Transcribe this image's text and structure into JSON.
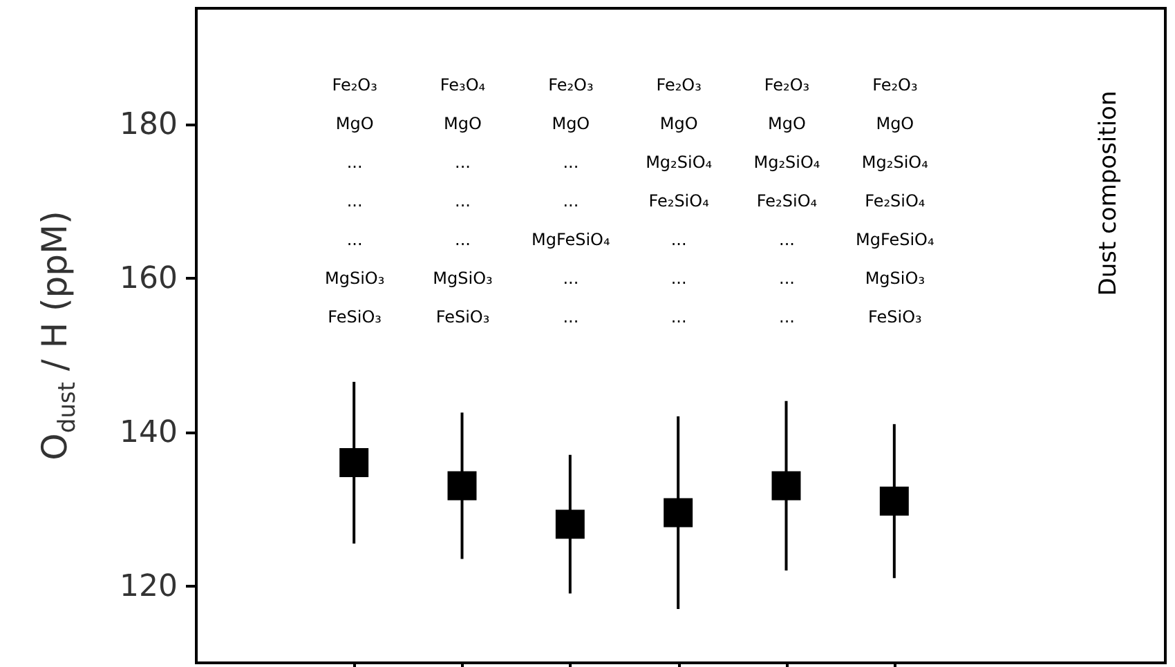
{
  "chart_data": {
    "type": "scatter",
    "ylabel": "O$_{dust}$ / H (ppM)",
    "categories": [
      "Fe₂O₃\nMgO\n...\n...\n...\nMgSiO₃\nFeSiO₃",
      "Fe₃O₄\nMgO\n...\n...\n...\nMgSiO₃\nFeSiO₃",
      "Fe₂O₃\nMgO\n...\n...\nMgFeSiO₄\n...\n...",
      "Fe₂O₃\nMgO\nMg₂SiO₄\nFe₂SiO₄\n...\n...\n...",
      "Fe₂O₃\nMgO\nMg₂SiO₄\nFe₂SiO₄\n...\n...\n...",
      "Fe₂O₃\nMgO\nMg₂SiO₄\nFe₂SiO₄\nMgFeSiO₄\nMgSiO₃\nFeSiO₃"
    ],
    "series": [
      {
        "color": "#000000",
        "values": [
          136,
          133,
          128,
          129.5,
          133,
          131
        ],
        "errors": [
          10.5,
          9.5,
          9,
          12.5,
          11,
          10
        ]
      }
    ],
    "marker": "square",
    "ylim": [
      110,
      195
    ],
    "yticks": [
      120,
      140,
      160,
      180
    ],
    "annotations": [
      "Dust composition"
    ]
  }
}
